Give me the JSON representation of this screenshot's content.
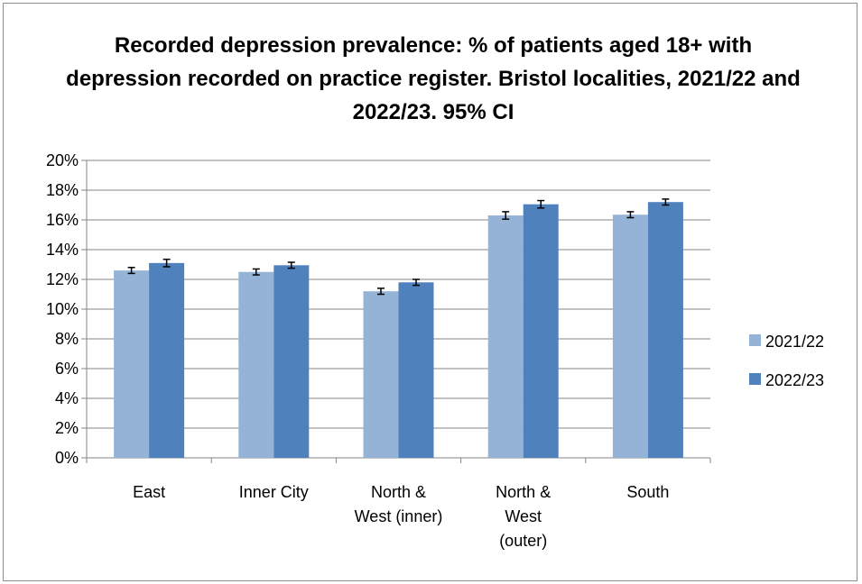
{
  "chart_data": {
    "type": "bar",
    "title": "Recorded depression prevalence: % of patients aged 18+ with depression recorded on practice register. Bristol localities, 2021/22 and 2022/23. 95% CI",
    "xlabel": "",
    "ylabel": "",
    "categories": [
      [
        "East"
      ],
      [
        "Inner City"
      ],
      [
        "North &",
        "West (inner)"
      ],
      [
        "North &",
        "West",
        "(outer)"
      ],
      [
        "South"
      ]
    ],
    "series": [
      {
        "name": "2021/22",
        "color": "#95b3d7",
        "values": [
          12.6,
          12.5,
          11.2,
          16.3,
          16.35
        ],
        "ci_low": [
          12.4,
          12.3,
          11.0,
          16.05,
          16.15
        ],
        "ci_high": [
          12.8,
          12.7,
          11.4,
          16.55,
          16.55
        ]
      },
      {
        "name": "2022/23",
        "color": "#4f81bd",
        "values": [
          13.1,
          12.95,
          11.8,
          17.05,
          17.2
        ],
        "ci_low": [
          12.85,
          12.75,
          11.6,
          16.8,
          17.0
        ],
        "ci_high": [
          13.35,
          13.15,
          12.0,
          17.3,
          17.4
        ]
      }
    ],
    "ylim": [
      0,
      20
    ],
    "y_tick_step": 2,
    "y_tick_suffix": "%",
    "grid": true,
    "legend_position": "right",
    "error_bars": "95% CI"
  }
}
